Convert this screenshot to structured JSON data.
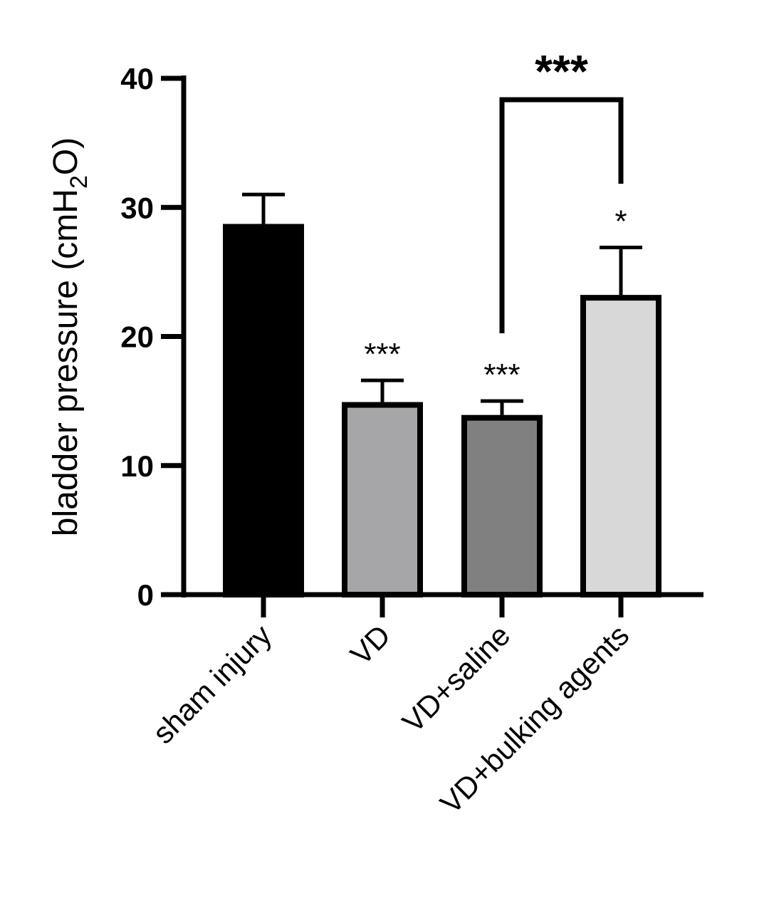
{
  "chart_data": {
    "type": "bar",
    "categories": [
      "sham injury",
      "VD",
      "VD+saline",
      "VD+bulking agents"
    ],
    "values": [
      28.5,
      14.7,
      13.7,
      23.0
    ],
    "error_upper": [
      31.0,
      16.6,
      15.0,
      26.9
    ],
    "colors": [
      "#000000",
      "#a6a6a8",
      "#808080",
      "#d8d8d8"
    ],
    "significance_labels": [
      "",
      "***",
      "***",
      "*"
    ],
    "comparison": {
      "from_category": "VD+saline",
      "to_category": "VD+bulking agents",
      "label": "***"
    },
    "ylabel_main": "bladder pressure (cmH",
    "ylabel_sub": "2",
    "ylabel_end": "O)",
    "xlabel": "",
    "title": "",
    "ylim": [
      0,
      40
    ],
    "yticks": [
      0,
      10,
      20,
      30,
      40
    ],
    "grid": false,
    "legend": "none"
  }
}
